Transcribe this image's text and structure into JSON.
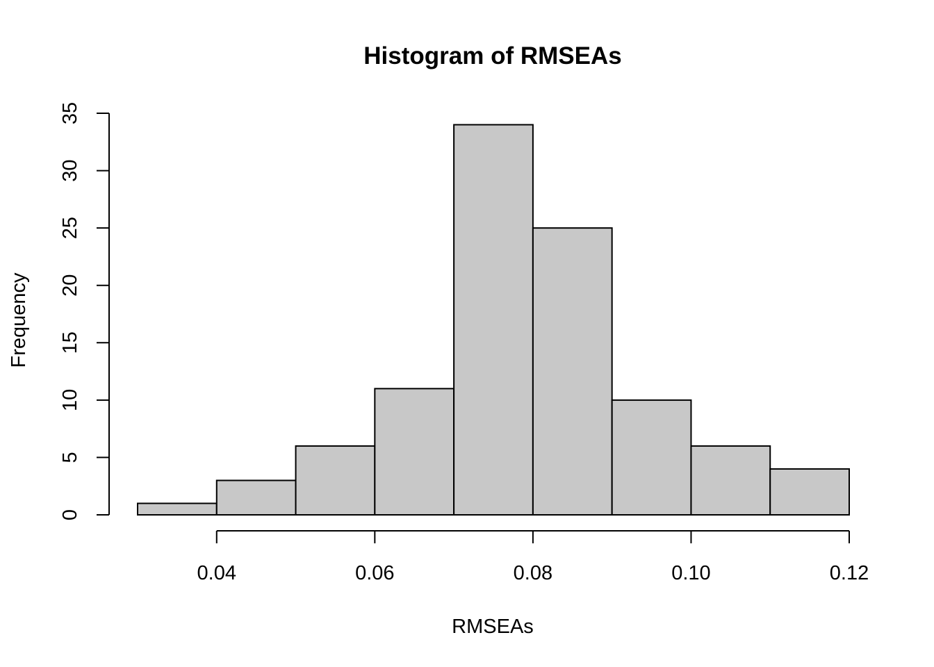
{
  "chart_data": {
    "type": "bar",
    "title": "Histogram of RMSEAs",
    "xlabel": "RMSEAs",
    "ylabel": "Frequency",
    "bins": [
      {
        "x0": 0.03,
        "x1": 0.04,
        "count": 1
      },
      {
        "x0": 0.04,
        "x1": 0.05,
        "count": 3
      },
      {
        "x0": 0.05,
        "x1": 0.06,
        "count": 6
      },
      {
        "x0": 0.06,
        "x1": 0.07,
        "count": 11
      },
      {
        "x0": 0.07,
        "x1": 0.08,
        "count": 34
      },
      {
        "x0": 0.08,
        "x1": 0.09,
        "count": 25
      },
      {
        "x0": 0.09,
        "x1": 0.1,
        "count": 10
      },
      {
        "x0": 0.1,
        "x1": 0.11,
        "count": 6
      },
      {
        "x0": 0.11,
        "x1": 0.12,
        "count": 4
      }
    ],
    "x_ticks": [
      0.04,
      0.06,
      0.08,
      0.1,
      0.12
    ],
    "x_tick_labels": [
      "0.04",
      "0.06",
      "0.08",
      "0.10",
      "0.12"
    ],
    "y_ticks": [
      0,
      5,
      10,
      15,
      20,
      25,
      30,
      35
    ],
    "y_tick_labels": [
      "0",
      "5",
      "10",
      "15",
      "20",
      "25",
      "30",
      "35"
    ],
    "xlim": [
      0.03,
      0.12
    ],
    "ylim": [
      0,
      35
    ],
    "grid": false,
    "bar_color": "#c8c8c8",
    "edge_color": "#000000"
  }
}
